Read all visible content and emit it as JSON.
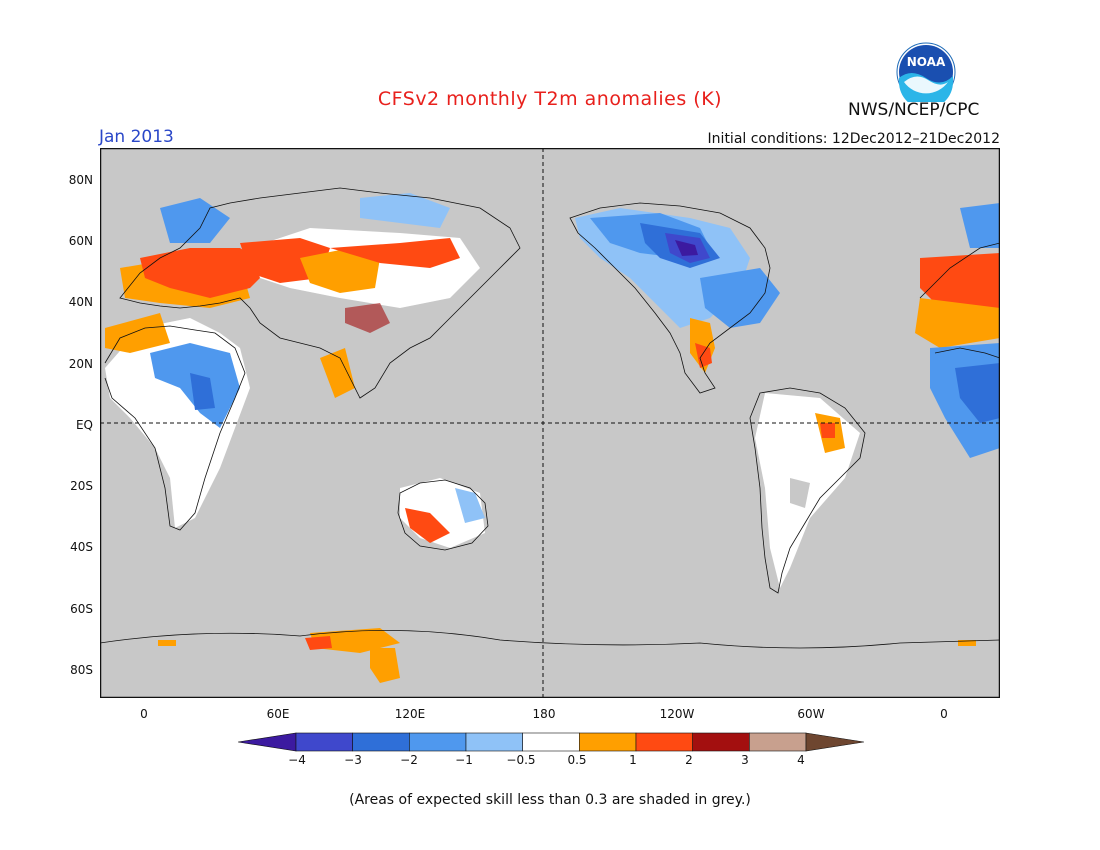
{
  "header": {
    "title": "CFSv2 monthly T2m anomalies (K)",
    "agency": "NWS/NCEP/CPC",
    "logo_text": "NOAA",
    "valid_month": "Jan 2013",
    "initial_conditions": "Initial conditions: 12Dec2012–21Dec2012"
  },
  "map": {
    "projection": "cylindrical equidistant, centered on 180",
    "lon_range": [
      -20,
      380
    ],
    "lat_range": [
      -90,
      90
    ],
    "land_no_skill_color": "#c8c8c8",
    "ocean_color": "#c8c8c8",
    "y_labels": [
      "80N",
      "60N",
      "40N",
      "20N",
      "EQ",
      "20S",
      "40S",
      "60S",
      "80S"
    ],
    "x_labels": [
      "0",
      "60E",
      "120E",
      "180",
      "120W",
      "60W",
      "0"
    ]
  },
  "colorbar": {
    "labels": [
      "−4",
      "−3",
      "−2",
      "−1",
      "−0.5",
      "0.5",
      "1",
      "2",
      "3",
      "4"
    ],
    "colors": [
      "#3c1aa0",
      "#3f48cc",
      "#2f6fd8",
      "#4f98ee",
      "#8fc2f7",
      "#ffffff",
      "#ff9f00",
      "#ff4a12",
      "#a30f0f",
      "#c8a08e",
      "#6e4630"
    ]
  },
  "footnote": "(Areas of expected skill less than 0.3 are shaded in grey.)"
}
